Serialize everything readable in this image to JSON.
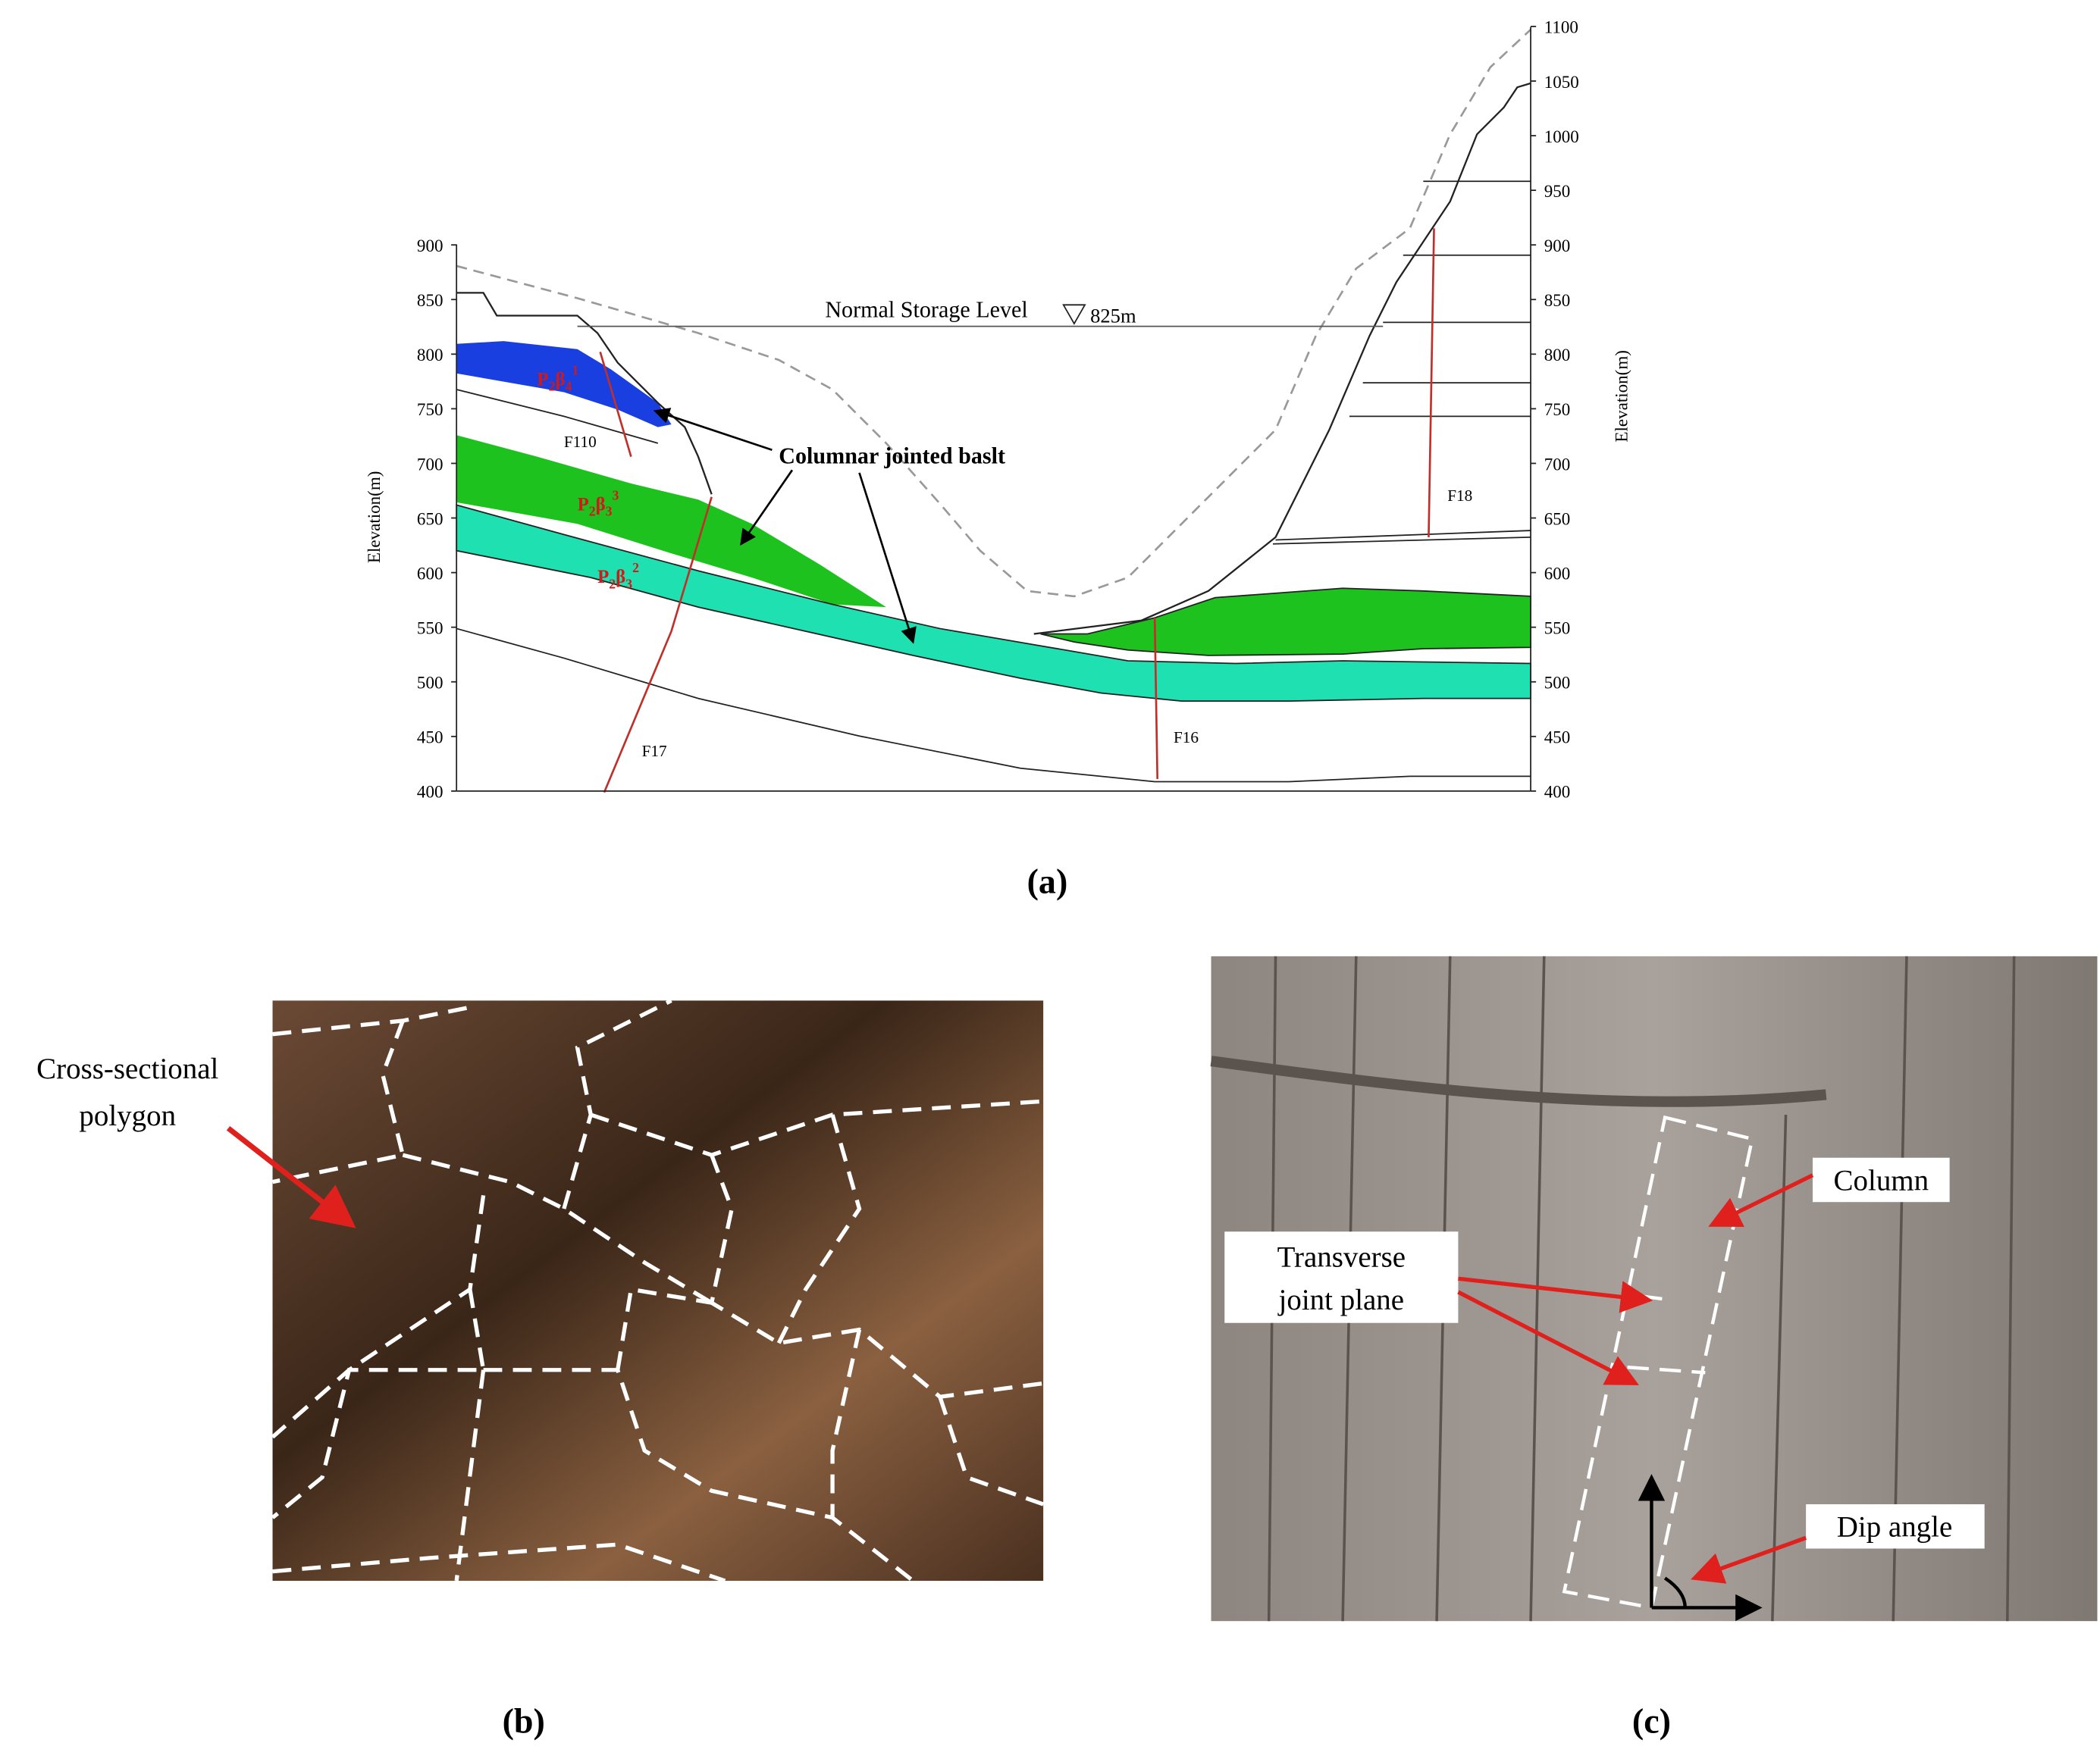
{
  "panel_a": {
    "left_axis": {
      "label": "Elevation(m)",
      "ticks": [
        400,
        450,
        500,
        550,
        600,
        650,
        700,
        750,
        800,
        850,
        900
      ]
    },
    "right_axis": {
      "label": "Elevation(m)",
      "ticks": [
        400,
        450,
        500,
        550,
        600,
        650,
        700,
        750,
        800,
        850,
        900,
        950,
        1000,
        1050,
        1100
      ]
    },
    "storage_level": {
      "label": "Normal Storage Level",
      "value": "825m"
    },
    "annotation": "Columnar jointed baslt",
    "layers": [
      {
        "parts": [
          "P",
          "2",
          "β",
          "4",
          "1"
        ]
      },
      {
        "parts": [
          "P",
          "2",
          "β",
          "3",
          "3"
        ]
      },
      {
        "parts": [
          "P",
          "2",
          "β",
          "3",
          "2"
        ]
      }
    ],
    "faults": [
      "F110",
      "F17",
      "F16",
      "F18"
    ],
    "caption": "(a)"
  },
  "panel_b": {
    "annotation": [
      "Cross-sectional",
      "polygon"
    ],
    "caption": "(b)"
  },
  "panel_c": {
    "column": "Column",
    "transverse": [
      "Transverse",
      "joint plane"
    ],
    "dip": "Dip angle",
    "caption": "(c)"
  }
}
